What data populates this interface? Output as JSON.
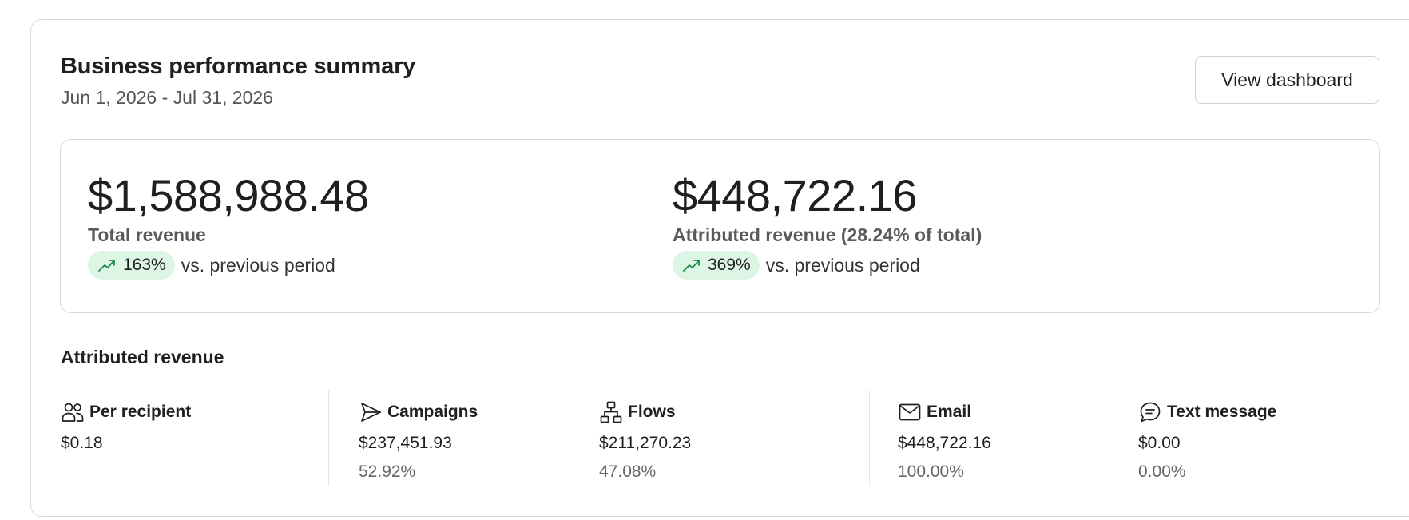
{
  "header": {
    "title": "Business performance summary",
    "date_range": "Jun 1, 2026 - Jul 31, 2026",
    "view_dashboard_label": "View dashboard"
  },
  "kpis": {
    "total": {
      "value": "$1,588,988.48",
      "label": "Total revenue",
      "change": "163%",
      "change_suffix": "vs. previous period",
      "trend_icon": "trend-up-icon"
    },
    "attributed": {
      "value": "$448,722.16",
      "label": "Attributed revenue (28.24% of total)",
      "change": "369%",
      "change_suffix": "vs. previous period",
      "trend_icon": "trend-up-icon"
    }
  },
  "attributed_section": {
    "title": "Attributed revenue",
    "metrics": [
      {
        "icon": "users-icon",
        "label": "Per recipient",
        "value": "$0.18",
        "percent": ""
      },
      {
        "icon": "send-icon",
        "label": "Campaigns",
        "value": "$237,451.93",
        "percent": "52.92%"
      },
      {
        "icon": "flow-icon",
        "label": "Flows",
        "value": "$211,270.23",
        "percent": "47.08%"
      },
      {
        "icon": "mail-icon",
        "label": "Email",
        "value": "$448,722.16",
        "percent": "100.00%"
      },
      {
        "icon": "chat-icon",
        "label": "Text message",
        "value": "$0.00",
        "percent": "0.00%"
      }
    ]
  },
  "colors": {
    "positive_pill_bg": "#dcf5e4",
    "positive_icon": "#1f8a4c",
    "border": "#d9d9d9"
  }
}
